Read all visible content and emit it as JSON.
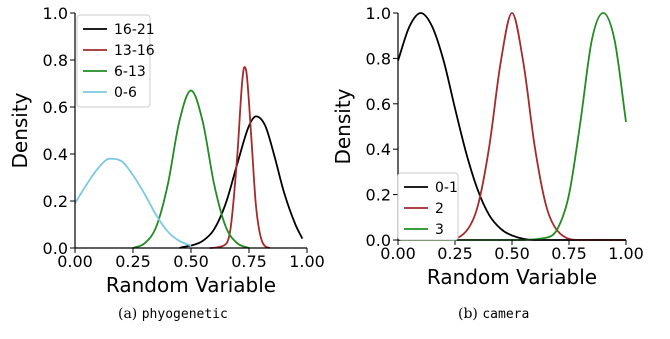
{
  "chart_data": [
    {
      "type": "line",
      "xlabel": "Random Variable",
      "ylabel": "Density",
      "xlim": [
        0.0,
        1.0
      ],
      "ylim": [
        0.0,
        1.0
      ],
      "xticks": [
        "0.00",
        "0.25",
        "0.50",
        "0.75",
        "1.00"
      ],
      "yticks": [
        "0.0",
        "0.2",
        "0.4",
        "0.6",
        "0.8",
        "1.0"
      ],
      "legend_position": "top-left",
      "series": [
        {
          "name": "16-21",
          "color": "#000000",
          "x": [
            0.45,
            0.55,
            0.6,
            0.65,
            0.7,
            0.75,
            0.78,
            0.82,
            0.86,
            0.9,
            0.95,
            0.98
          ],
          "y": [
            0.0,
            0.03,
            0.08,
            0.19,
            0.36,
            0.52,
            0.56,
            0.52,
            0.39,
            0.24,
            0.1,
            0.04
          ]
        },
        {
          "name": "13-16",
          "color": "#a52a2a",
          "x": [
            0.58,
            0.64,
            0.67,
            0.7,
            0.72,
            0.73,
            0.74,
            0.76,
            0.78,
            0.81,
            0.84
          ],
          "y": [
            0.0,
            0.01,
            0.08,
            0.4,
            0.7,
            0.77,
            0.74,
            0.47,
            0.18,
            0.02,
            0.0
          ]
        },
        {
          "name": "6-13",
          "color": "#228b22",
          "x": [
            0.25,
            0.3,
            0.35,
            0.4,
            0.45,
            0.5,
            0.55,
            0.6,
            0.65,
            0.7,
            0.75
          ],
          "y": [
            0.0,
            0.02,
            0.09,
            0.27,
            0.54,
            0.67,
            0.54,
            0.27,
            0.09,
            0.02,
            0.0
          ]
        },
        {
          "name": "0-6",
          "color": "#7ec8e3",
          "x": [
            0.0,
            0.05,
            0.1,
            0.15,
            0.2,
            0.25,
            0.3,
            0.35,
            0.4,
            0.45,
            0.5
          ],
          "y": [
            0.19,
            0.27,
            0.34,
            0.38,
            0.37,
            0.31,
            0.23,
            0.14,
            0.07,
            0.03,
            0.01
          ]
        }
      ]
    },
    {
      "type": "line",
      "xlabel": "Random Variable",
      "ylabel": "Density",
      "xlim": [
        0.0,
        1.0
      ],
      "ylim": [
        0.0,
        1.0
      ],
      "xticks": [
        "0.00",
        "0.25",
        "0.50",
        "0.75",
        "1.00"
      ],
      "yticks": [
        "0.0",
        "0.2",
        "0.4",
        "0.6",
        "0.8",
        "1.0"
      ],
      "legend_position": "bottom-left",
      "series": [
        {
          "name": "0-1",
          "color": "#000000",
          "x": [
            0.0,
            0.05,
            0.1,
            0.15,
            0.2,
            0.25,
            0.3,
            0.35,
            0.4,
            0.45,
            0.5,
            0.6,
            0.7,
            1.0
          ],
          "y": [
            0.79,
            0.94,
            1.0,
            0.94,
            0.79,
            0.58,
            0.38,
            0.22,
            0.11,
            0.05,
            0.02,
            0.0,
            0.0,
            0.0
          ]
        },
        {
          "name": "2",
          "color": "#a52a2a",
          "x": [
            0.0,
            0.2,
            0.3,
            0.35,
            0.4,
            0.45,
            0.5,
            0.55,
            0.6,
            0.65,
            0.7,
            0.8,
            1.0
          ],
          "y": [
            0.0,
            0.0,
            0.04,
            0.15,
            0.41,
            0.78,
            1.0,
            0.78,
            0.41,
            0.15,
            0.04,
            0.0,
            0.0
          ]
        },
        {
          "name": "3",
          "color": "#228b22",
          "x": [
            0.0,
            0.5,
            0.65,
            0.7,
            0.75,
            0.8,
            0.85,
            0.9,
            0.95,
            1.0
          ],
          "y": [
            0.0,
            0.0,
            0.01,
            0.05,
            0.2,
            0.52,
            0.88,
            1.0,
            0.88,
            0.52
          ]
        }
      ]
    }
  ],
  "captions": [
    {
      "prefix": "(a) ",
      "name": "phyogenetic"
    },
    {
      "prefix": "(b) ",
      "name": "camera"
    }
  ]
}
